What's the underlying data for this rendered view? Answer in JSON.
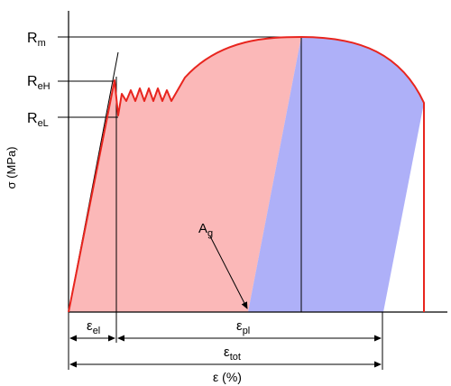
{
  "colors": {
    "curve": "#e8251e",
    "elastic_fill": "#fbb8b8",
    "plastic_fill": "#aeb0f8",
    "line": "#000000"
  },
  "labels": {
    "Rm": "R",
    "Rm_sub": "m",
    "ReH": "R",
    "ReH_sub": "eH",
    "ReL": "R",
    "ReL_sub": "eL",
    "y_axis": "σ (MPa)",
    "Ag": "A",
    "Ag_sub": "g",
    "eps_el": "ε",
    "eps_el_sub": "el",
    "eps_pl": "ε",
    "eps_pl_sub": "pl",
    "eps_tot": "ε",
    "eps_tot_sub": "tot",
    "x_axis": "ε (%)"
  }
}
